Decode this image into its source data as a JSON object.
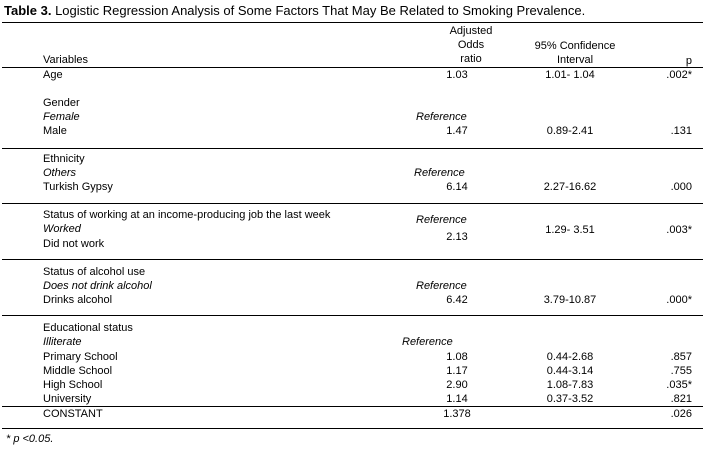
{
  "title": {
    "label": "Table 3.",
    "text": " Logistic Regression Analysis of Some Factors That May Be Related to Smoking Prevalence."
  },
  "header": {
    "variables": "Variables",
    "aor_1": "Adjusted",
    "aor_2": "Odds",
    "aor_3": "ratio",
    "ci_1": "95% Confidence",
    "ci_2": "Interval",
    "p": "p"
  },
  "rows": {
    "age": {
      "label": "Age",
      "aor": "1.03",
      "ci": "1.01- 1.04",
      "p": ".002*"
    },
    "gender": {
      "heading": "Gender",
      "ref_label": "Female",
      "ref": "Reference",
      "label": "Male",
      "aor": "1.47",
      "ci": "0.89-2.41",
      "p": ".131"
    },
    "ethnicity": {
      "heading": "Ethnicity",
      "ref_label": "Others",
      "ref": "Reference",
      "label": "Turkish Gypsy",
      "aor": "6.14",
      "ci": "2.27-16.62",
      "p": ".000"
    },
    "working": {
      "heading": "Status of working at an income-producing job the last week",
      "ref_label": "Worked",
      "ref": "Reference",
      "label": "Did not work",
      "aor": "2.13",
      "ci": "1.29- 3.51",
      "p": ".003*"
    },
    "alcohol": {
      "heading": "Status of alcohol use",
      "ref_label": "Does not drink alcohol",
      "ref": "Reference",
      "label": "Drinks alcohol",
      "aor": "6.42",
      "ci": "3.79-10.87",
      "p": ".000*"
    },
    "education": {
      "heading": "Educational status",
      "ref_label": "Illiterate",
      "ref": "Reference",
      "items": [
        {
          "label": "Primary School",
          "aor": "1.08",
          "ci": "0.44-2.68",
          "p": ".857"
        },
        {
          "label": "Middle School",
          "aor": "1.17",
          "ci": "0.44-3.14",
          "p": ".755"
        },
        {
          "label": "High School",
          "aor": "2.90",
          "ci": "1.08-7.83",
          "p": ".035*"
        },
        {
          "label": "University",
          "aor": "1.14",
          "ci": "0.37-3.52",
          "p": ".821"
        }
      ]
    },
    "constant": {
      "label": "CONSTANT",
      "aor": "1.378",
      "p": ".026"
    }
  },
  "footnote": "* p <0.05."
}
